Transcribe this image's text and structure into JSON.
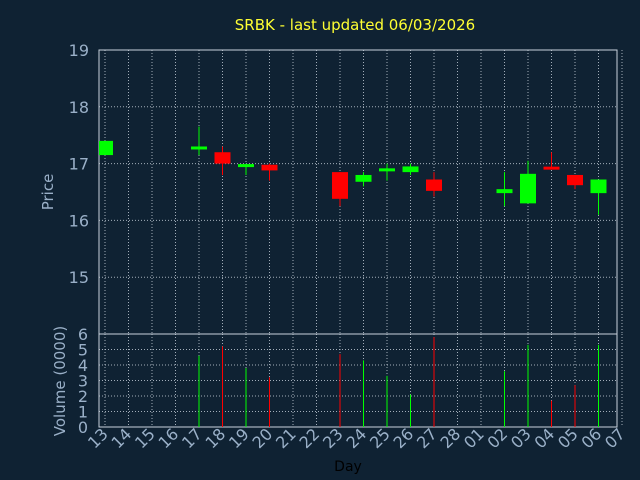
{
  "colors": {
    "background": "#0f2233",
    "up": "#00ff00",
    "down": "#ff0000",
    "title": "#ffff33",
    "text": "#9ab0c8",
    "grid": "#c8d2dc"
  },
  "chart_data": {
    "type": "candlestick",
    "title": "SRBK - last updated 06/03/2026",
    "xlabel": "Day",
    "ylabel_price": "Price",
    "ylabel_volume": "Volume (0000)",
    "price_ylim": [
      14,
      19
    ],
    "price_ticks": [
      15,
      16,
      17,
      18,
      19
    ],
    "volume_ylim": [
      0,
      6
    ],
    "volume_ticks": [
      0,
      1,
      2,
      3,
      4,
      5,
      6
    ],
    "grid": true,
    "x_ticks": [
      "13",
      "14",
      "15",
      "16",
      "17",
      "18",
      "19",
      "20",
      "21",
      "22",
      "23",
      "24",
      "25",
      "26",
      "27",
      "28",
      "01",
      "02",
      "03",
      "04",
      "05",
      "06",
      "07"
    ],
    "candles": [
      {
        "x": "13",
        "open": 17.15,
        "close": 17.4,
        "high": 17.4,
        "low": 17.15,
        "volume": 0
      },
      {
        "x": "17",
        "open": 17.25,
        "close": 17.3,
        "high": 17.65,
        "low": 17.15,
        "volume": 4.6
      },
      {
        "x": "18",
        "open": 17.2,
        "close": 17.0,
        "high": 17.3,
        "low": 16.8,
        "volume": 5.2
      },
      {
        "x": "19",
        "open": 16.95,
        "close": 16.98,
        "high": 17.0,
        "low": 16.8,
        "volume": 3.8
      },
      {
        "x": "20",
        "open": 16.98,
        "close": 16.88,
        "high": 17.0,
        "low": 16.7,
        "volume": 3.2
      },
      {
        "x": "23",
        "open": 16.85,
        "close": 16.38,
        "high": 16.85,
        "low": 16.25,
        "volume": 4.7
      },
      {
        "x": "24",
        "open": 16.68,
        "close": 16.8,
        "high": 16.85,
        "low": 16.6,
        "volume": 4.3
      },
      {
        "x": "25",
        "open": 16.88,
        "close": 16.9,
        "high": 17.0,
        "low": 16.7,
        "volume": 3.3
      },
      {
        "x": "26",
        "open": 16.85,
        "close": 16.95,
        "high": 17.0,
        "low": 16.8,
        "volume": 2.1
      },
      {
        "x": "27",
        "open": 16.72,
        "close": 16.52,
        "high": 16.85,
        "low": 16.42,
        "volume": 5.8
      },
      {
        "x": "02",
        "open": 16.48,
        "close": 16.55,
        "high": 16.85,
        "low": 16.25,
        "volume": 3.6
      },
      {
        "x": "03",
        "open": 16.3,
        "close": 16.82,
        "high": 17.05,
        "low": 16.3,
        "volume": 5.3
      },
      {
        "x": "04",
        "open": 16.93,
        "close": 16.91,
        "high": 17.2,
        "low": 16.9,
        "volume": 1.7
      },
      {
        "x": "05",
        "open": 16.8,
        "close": 16.62,
        "high": 16.8,
        "low": 16.55,
        "volume": 2.7
      },
      {
        "x": "06",
        "open": 16.48,
        "close": 16.72,
        "high": 16.72,
        "low": 16.1,
        "volume": 5.3
      }
    ]
  }
}
